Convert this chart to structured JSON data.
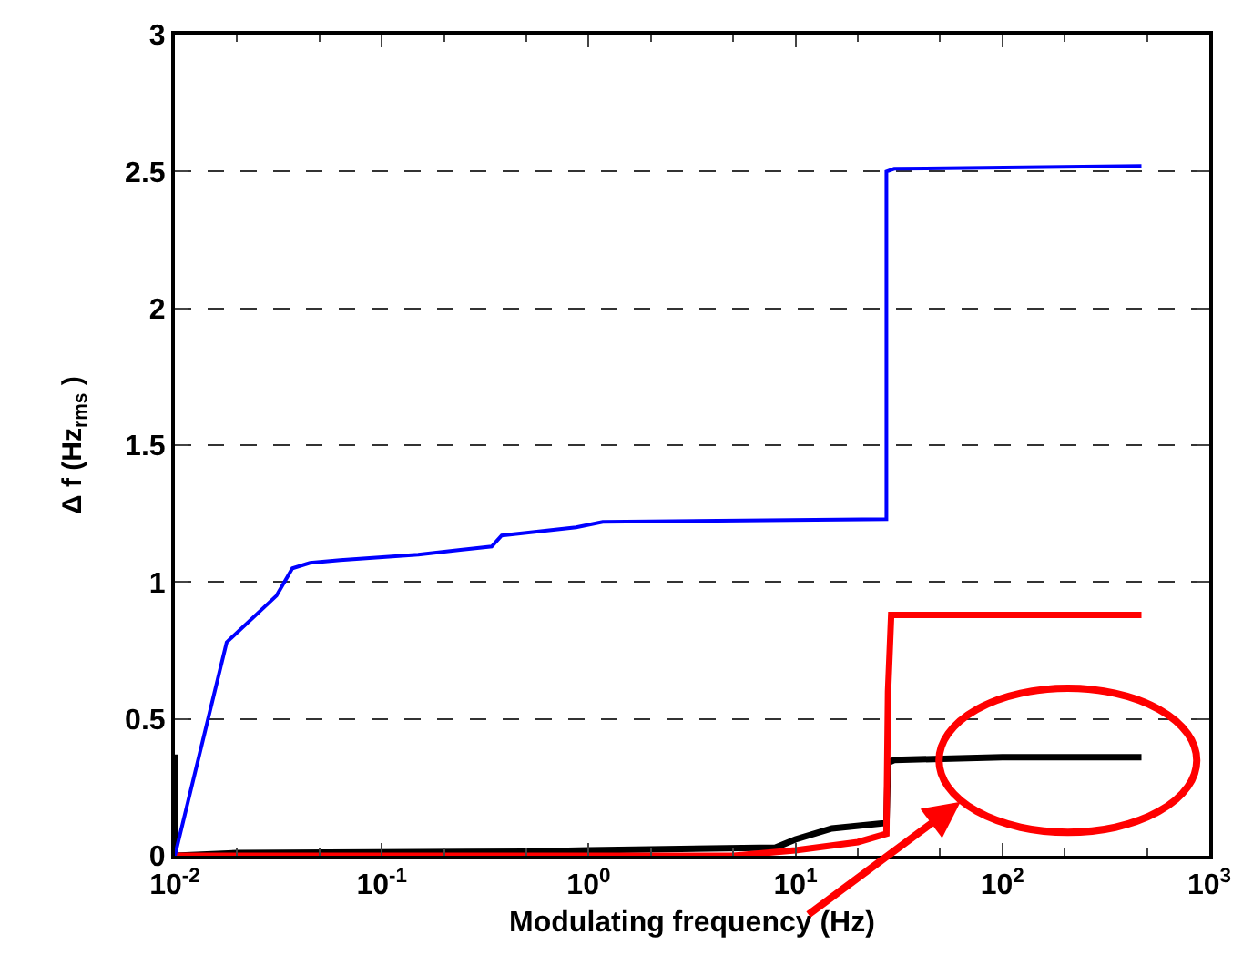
{
  "chart_data": {
    "type": "line",
    "xlabel": "Modulating frequency (Hz)",
    "ylabel": "Δ f (Hz$_{rms}$ )",
    "log": "x",
    "xlim": [
      0.01,
      1000
    ],
    "xticks": [
      {
        "value": 0.01,
        "label": "10$^{-2}$"
      },
      {
        "value": 0.1,
        "label": "10$^{-1}$"
      },
      {
        "value": 1,
        "label": "10$^{0}$"
      },
      {
        "value": 10,
        "label": "10$^{1}$"
      },
      {
        "value": 100,
        "label": "10$^{2}$"
      },
      {
        "value": 1000,
        "label": "10$^{3}$"
      }
    ],
    "ylim": [
      0,
      3
    ],
    "yticks": [
      0,
      0.5,
      1,
      1.5,
      2,
      2.5,
      3
    ],
    "grid": "y",
    "marker": "none",
    "line_style": "solid",
    "series": [
      {
        "color": "#000000",
        "x": [
          0.01,
          0.01,
          0.02,
          0.5,
          1,
          8,
          10,
          15,
          27.5,
          28,
          30,
          100,
          470
        ],
        "values": [
          0.37,
          0.0,
          0.01,
          0.015,
          0.02,
          0.03,
          0.06,
          0.1,
          0.12,
          0.34,
          0.35,
          0.36,
          0.36
        ]
      },
      {
        "color": "#ff0000",
        "x": [
          0.01,
          5,
          10,
          20,
          27.5,
          28,
          29,
          470
        ],
        "values": [
          0,
          0,
          0.02,
          0.05,
          0.08,
          0.6,
          0.88,
          0.88
        ]
      },
      {
        "color": "#0000ff",
        "x": [
          0.01,
          0.0178,
          0.031,
          0.037,
          0.045,
          0.063,
          0.15,
          0.34,
          0.38,
          0.5,
          0.87,
          1.17,
          27.5,
          27.5,
          30,
          470
        ],
        "values": [
          0,
          0.78,
          0.95,
          1.05,
          1.07,
          1.08,
          1.1,
          1.13,
          1.17,
          1.18,
          1.2,
          1.22,
          1.23,
          2.5,
          2.51,
          2.52
        ]
      }
    ]
  }
}
